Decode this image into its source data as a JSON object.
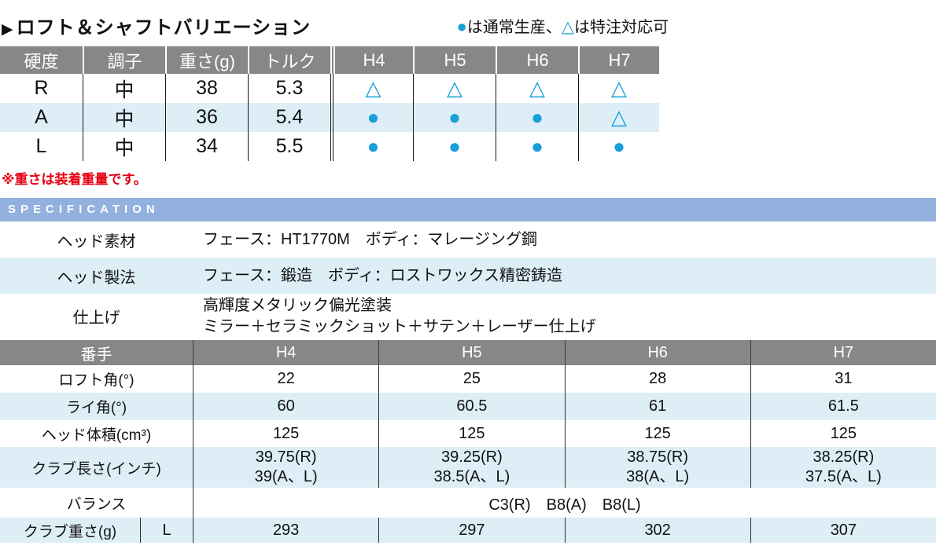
{
  "title": {
    "arrow": "▶",
    "text": "ロフト＆シャフトバリエーション"
  },
  "legend": {
    "circle_symbol": "●",
    "circle_label": "は通常生産、",
    "triangle_symbol": "△",
    "triangle_label": "は特注対応可"
  },
  "variation_table": {
    "headers": [
      "硬度",
      "調子",
      "重さ(g)",
      "トルク",
      "H4",
      "H5",
      "H6",
      "H7"
    ],
    "rows": [
      {
        "cells": [
          "R",
          "中",
          "38",
          "5.3",
          "△",
          "△",
          "△",
          "△"
        ]
      },
      {
        "cells": [
          "A",
          "中",
          "36",
          "5.4",
          "●",
          "●",
          "●",
          "△"
        ]
      },
      {
        "cells": [
          "L",
          "中",
          "34",
          "5.5",
          "●",
          "●",
          "●",
          "●"
        ]
      }
    ]
  },
  "note": "※重さは装着重量です。",
  "specification": {
    "header": "SPECIFICATION",
    "rows": [
      {
        "label": "ヘッド素材",
        "value": "フェース：HT1770M　ボディ：マレージング鋼"
      },
      {
        "label": "ヘッド製法",
        "value": "フェース：鍛造　ボディ：ロストワックス精密鋳造"
      },
      {
        "label": "仕上げ",
        "value_line1": "高輝度メタリック偏光塗装",
        "value_line2": "ミラー＋セラミックショット＋サテン＋レーザー仕上げ"
      }
    ]
  },
  "spec_table": {
    "headers": [
      "番手",
      "H4",
      "H5",
      "H6",
      "H7"
    ],
    "loft_row": {
      "label": "ロフト角(°)",
      "values": [
        "22",
        "25",
        "28",
        "31"
      ]
    },
    "lie_row": {
      "label": "ライ角(°)",
      "values": [
        "60",
        "60.5",
        "61",
        "61.5"
      ]
    },
    "volume_row": {
      "label": "ヘッド体積(cm³)",
      "values": [
        "125",
        "125",
        "125",
        "125"
      ]
    },
    "length_row": {
      "label": "クラブ長さ(インチ)",
      "line1": [
        "39.75(R)",
        "39.25(R)",
        "38.75(R)",
        "38.25(R)"
      ],
      "line2": [
        "39(A、L)",
        "38.5(A、L)",
        "38(A、L)",
        "37.5(A、L)"
      ]
    },
    "balance_row": {
      "label": "バランス",
      "value": "C3(R)　B8(A)　B8(L)"
    },
    "weight_row": {
      "label": "クラブ重さ(g)",
      "sublabel": "L",
      "values": [
        "293",
        "297",
        "302",
        "307"
      ]
    }
  },
  "colors": {
    "header_gray": "#878787",
    "stripe_blue": "#ddeef7",
    "spec_bar_blue": "#92b1de",
    "symbol_blue": "#189fd8",
    "note_red": "#e60012"
  }
}
